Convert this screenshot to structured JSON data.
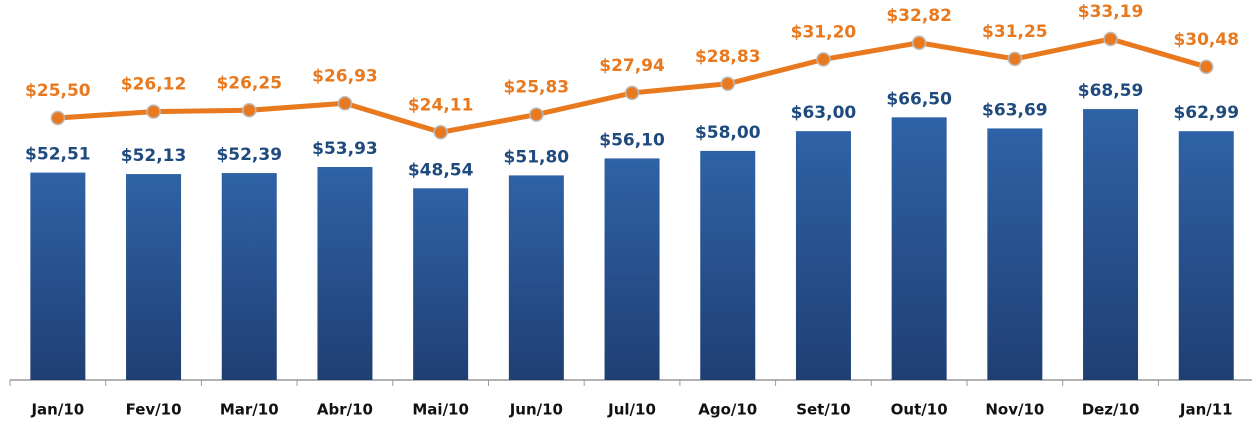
{
  "chart_data": {
    "type": "bar-line",
    "categories": [
      "Jan/10",
      "Fev/10",
      "Mar/10",
      "Abr/10",
      "Mai/10",
      "Jun/10",
      "Jul/10",
      "Ago/10",
      "Set/10",
      "Out/10",
      "Nov/10",
      "Dez/10",
      "Jan/11"
    ],
    "series": [
      {
        "type": "bar",
        "color": "#2f62a6",
        "label_color": "#1f4a7d",
        "values": [
          52.51,
          52.13,
          52.39,
          53.93,
          48.54,
          51.8,
          56.1,
          58.0,
          63.0,
          66.5,
          63.69,
          68.59,
          62.99
        ],
        "value_labels": [
          "$52,51",
          "$52,13",
          "$52,39",
          "$53,93",
          "$48,54",
          "$51,80",
          "$56,10",
          "$58,00",
          "$63,00",
          "$66,50",
          "$63,69",
          "$68,59",
          "$62,99"
        ]
      },
      {
        "type": "line",
        "axis": "y2",
        "color": "#e8791f",
        "label_color": "#e8791f",
        "values": [
          25.5,
          26.12,
          26.25,
          26.93,
          24.11,
          25.83,
          27.94,
          28.83,
          31.2,
          32.82,
          31.25,
          33.19,
          30.48
        ],
        "value_labels": [
          "$25,50",
          "$26,12",
          "$26,25",
          "$26,93",
          "$24,11",
          "$25,83",
          "$27,94",
          "$28,83",
          "$31,20",
          "$32,82",
          "$31,25",
          "$33,19",
          "$30,48"
        ]
      }
    ],
    "ylim": [
      0,
      100
    ],
    "y2lim": [
      0,
      40
    ]
  }
}
